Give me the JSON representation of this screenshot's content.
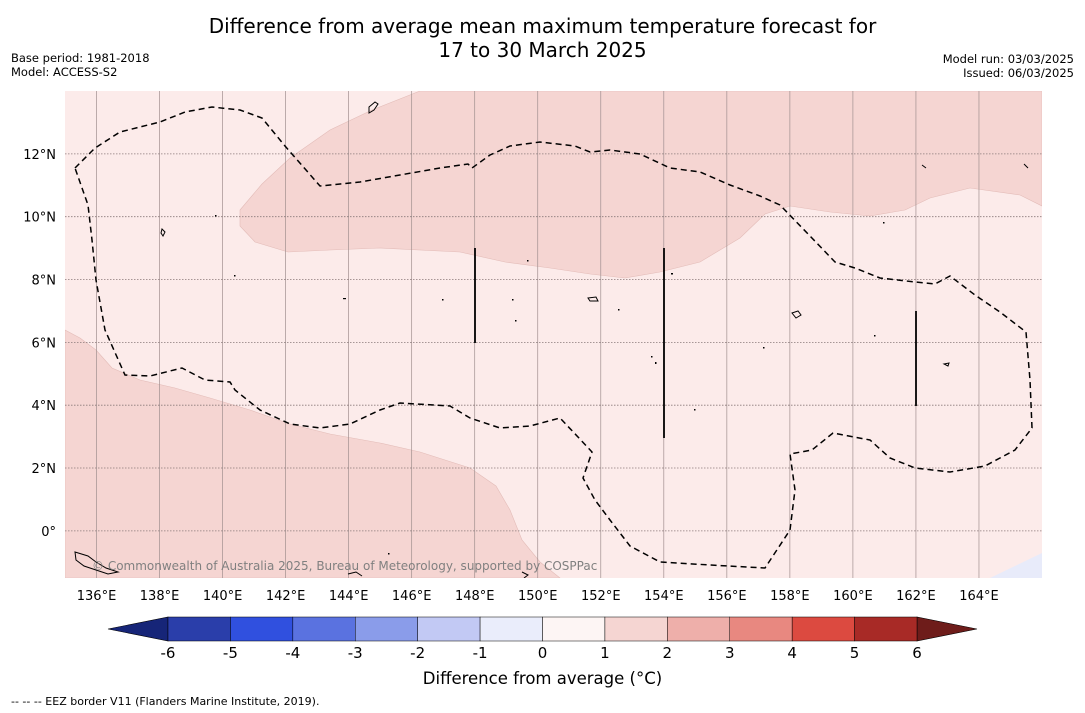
{
  "title": {
    "line1": "Difference from average mean maximum temperature forecast for",
    "line2": "17 to 30 March 2025"
  },
  "meta": {
    "base_period": "Base period: 1981-2018",
    "model": "Model: ACCESS-S2",
    "model_run": "Model run: 03/03/2025",
    "issued": "Issued: 06/03/2025"
  },
  "map": {
    "lon_range": [
      135,
      166
    ],
    "lat_range": [
      -1.5,
      14
    ],
    "lon_ticks": [
      "136°E",
      "138°E",
      "140°E",
      "142°E",
      "144°E",
      "146°E",
      "148°E",
      "150°E",
      "152°E",
      "154°E",
      "156°E",
      "158°E",
      "160°E",
      "162°E",
      "164°E"
    ],
    "lat_ticks": [
      "12°N",
      "10°N",
      "8°N",
      "6°N",
      "4°N",
      "2°N",
      "0°"
    ],
    "copyright": "© Commonwealth of Australia 2025, Bureau of Meteorology, supported by COSPPac",
    "colors": {
      "background": "#fcebea",
      "band_0_1": "#fcebea",
      "band_1_2": "#f5d5d2",
      "band_neg": "#e8ebfa",
      "eez": "#000000"
    }
  },
  "colorbar": {
    "ticks": [
      "-6",
      "-5",
      "-4",
      "-3",
      "-2",
      "-1",
      "0",
      "1",
      "2",
      "3",
      "4",
      "5",
      "6"
    ],
    "colors": [
      "#2a3eaa",
      "#3050df",
      "#5a72e0",
      "#8a9cea",
      "#c2c9f4",
      "#eaedfb",
      "#fdf5f4",
      "#f5d5d2",
      "#eeafaa",
      "#e88880",
      "#dc4a40",
      "#a82a26"
    ],
    "low_extend": "#162578",
    "high_extend": "#6e1c1a",
    "title": "Difference from average (°C)"
  },
  "footnote": "-- -- -- EEZ border V11 (Flanders Marine Institute, 2019)."
}
